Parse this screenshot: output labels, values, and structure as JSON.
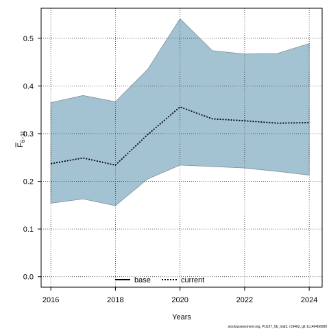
{
  "chart_data": {
    "type": "area",
    "x": [
      2016,
      2017,
      2018,
      2019,
      2020,
      2021,
      2022,
      2023,
      2024
    ],
    "series": [
      {
        "name": "current",
        "values": [
          0.237,
          0.249,
          0.234,
          0.298,
          0.356,
          0.331,
          0.327,
          0.322,
          0.323
        ],
        "line_style": "dotted",
        "color": "#000000"
      }
    ],
    "band": {
      "lower": [
        0.154,
        0.163,
        0.149,
        0.205,
        0.234,
        0.231,
        0.228,
        0.221,
        0.213
      ],
      "upper": [
        0.365,
        0.38,
        0.367,
        0.435,
        0.541,
        0.474,
        0.467,
        0.468,
        0.489
      ],
      "fill": "#a3c3d3",
      "stroke": "#7f8f98"
    },
    "xlabel": "Years",
    "ylabel_main": "F",
    "ylabel_sub": "6−11",
    "xticks": [
      "2016",
      "2018",
      "2020",
      "2022",
      "2024"
    ],
    "yticks": [
      "0.0",
      "0.1",
      "0.2",
      "0.3",
      "0.4",
      "0.5"
    ],
    "xlim": [
      2015.7,
      2024.4
    ],
    "ylim": [
      -0.022,
      0.563
    ],
    "grid": true,
    "legend": {
      "placement": "bottom-center",
      "entries": [
        {
          "label": "base",
          "style": "solid",
          "color": "#000000"
        },
        {
          "label": "current",
          "style": "dotted",
          "color": "#000000"
        }
      ]
    }
  },
  "footer_text": "stockassessment.org, PLE27_5b_trial3, r19462, git 1cc464b6080"
}
